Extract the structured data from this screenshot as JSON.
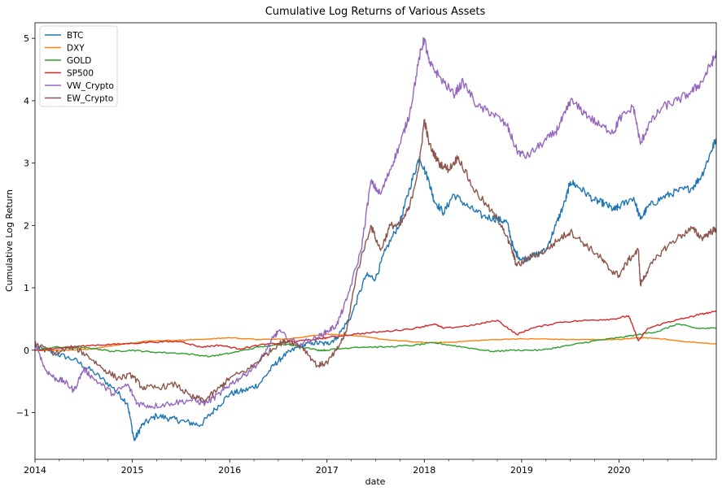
{
  "chart_data": {
    "type": "line",
    "title": "Cumulative Log Returns of Various Assets",
    "xlabel": "date",
    "ylabel": "Cumulative Log Return",
    "xlim": [
      2014.0,
      2021.0
    ],
    "ylim": [
      -1.75,
      5.25
    ],
    "x_ticks": [
      {
        "value": 2014,
        "label": "2014"
      },
      {
        "value": 2015,
        "label": "2015"
      },
      {
        "value": 2016,
        "label": "2016"
      },
      {
        "value": 2017,
        "label": "2017"
      },
      {
        "value": 2018,
        "label": "2018"
      },
      {
        "value": 2019,
        "label": "2019"
      },
      {
        "value": 2020,
        "label": "2020"
      }
    ],
    "x_minor_ticks": [
      2014.25,
      2014.5,
      2014.75,
      2015.25,
      2015.5,
      2015.75,
      2016.25,
      2016.5,
      2016.75,
      2017.25,
      2017.5,
      2017.75,
      2018.25,
      2018.5,
      2018.75,
      2019.25,
      2019.5,
      2019.75,
      2020.25,
      2020.5,
      2020.75
    ],
    "y_ticks": [
      {
        "value": -1,
        "label": "−1"
      },
      {
        "value": 0,
        "label": "0"
      },
      {
        "value": 1,
        "label": "1"
      },
      {
        "value": 2,
        "label": "2"
      },
      {
        "value": 3,
        "label": "3"
      },
      {
        "value": 4,
        "label": "4"
      },
      {
        "value": 5,
        "label": "5"
      }
    ],
    "grid": false,
    "legend_position": "top-left",
    "series": [
      {
        "name": "BTC",
        "color": "#1f77b4",
        "points": [
          [
            2014.0,
            0.05
          ],
          [
            2014.2,
            -0.05
          ],
          [
            2014.4,
            -0.15
          ],
          [
            2014.6,
            -0.35
          ],
          [
            2014.8,
            -0.6
          ],
          [
            2014.95,
            -0.85
          ],
          [
            2015.02,
            -1.45
          ],
          [
            2015.1,
            -1.2
          ],
          [
            2015.25,
            -1.05
          ],
          [
            2015.4,
            -1.1
          ],
          [
            2015.55,
            -1.15
          ],
          [
            2015.7,
            -1.2
          ],
          [
            2015.85,
            -0.95
          ],
          [
            2016.0,
            -0.7
          ],
          [
            2016.15,
            -0.65
          ],
          [
            2016.3,
            -0.55
          ],
          [
            2016.45,
            -0.25
          ],
          [
            2016.55,
            -0.1
          ],
          [
            2016.7,
            0.05
          ],
          [
            2016.85,
            0.12
          ],
          [
            2017.0,
            0.1
          ],
          [
            2017.1,
            0.2
          ],
          [
            2017.25,
            0.55
          ],
          [
            2017.4,
            1.2
          ],
          [
            2017.5,
            1.15
          ],
          [
            2017.6,
            1.6
          ],
          [
            2017.75,
            2.05
          ],
          [
            2017.85,
            2.6
          ],
          [
            2017.95,
            3.1
          ],
          [
            2018.05,
            2.7
          ],
          [
            2018.1,
            2.4
          ],
          [
            2018.2,
            2.2
          ],
          [
            2018.3,
            2.5
          ],
          [
            2018.45,
            2.3
          ],
          [
            2018.6,
            2.15
          ],
          [
            2018.75,
            2.1
          ],
          [
            2018.85,
            2.05
          ],
          [
            2018.92,
            1.6
          ],
          [
            2019.0,
            1.45
          ],
          [
            2019.1,
            1.5
          ],
          [
            2019.25,
            1.6
          ],
          [
            2019.35,
            2.0
          ],
          [
            2019.45,
            2.4
          ],
          [
            2019.5,
            2.7
          ],
          [
            2019.6,
            2.6
          ],
          [
            2019.75,
            2.4
          ],
          [
            2019.85,
            2.35
          ],
          [
            2019.95,
            2.25
          ],
          [
            2020.0,
            2.3
          ],
          [
            2020.15,
            2.45
          ],
          [
            2020.22,
            2.1
          ],
          [
            2020.3,
            2.3
          ],
          [
            2020.45,
            2.45
          ],
          [
            2020.6,
            2.55
          ],
          [
            2020.75,
            2.6
          ],
          [
            2020.85,
            2.8
          ],
          [
            2020.95,
            3.2
          ],
          [
            2021.0,
            3.4
          ]
        ]
      },
      {
        "name": "DXY",
        "color": "#ff7f0e",
        "points": [
          [
            2014.0,
            0.0
          ],
          [
            2014.3,
            0.0
          ],
          [
            2014.6,
            0.02
          ],
          [
            2014.9,
            0.1
          ],
          [
            2015.2,
            0.15
          ],
          [
            2015.5,
            0.16
          ],
          [
            2015.8,
            0.18
          ],
          [
            2016.0,
            0.2
          ],
          [
            2016.3,
            0.17
          ],
          [
            2016.6,
            0.18
          ],
          [
            2016.9,
            0.24
          ],
          [
            2017.0,
            0.26
          ],
          [
            2017.3,
            0.23
          ],
          [
            2017.6,
            0.17
          ],
          [
            2017.9,
            0.13
          ],
          [
            2018.1,
            0.12
          ],
          [
            2018.3,
            0.13
          ],
          [
            2018.6,
            0.16
          ],
          [
            2018.9,
            0.18
          ],
          [
            2019.2,
            0.18
          ],
          [
            2019.5,
            0.17
          ],
          [
            2019.8,
            0.17
          ],
          [
            2020.0,
            0.17
          ],
          [
            2020.2,
            0.2
          ],
          [
            2020.4,
            0.19
          ],
          [
            2020.6,
            0.15
          ],
          [
            2020.8,
            0.12
          ],
          [
            2021.0,
            0.1
          ]
        ]
      },
      {
        "name": "GOLD",
        "color": "#2ca02c",
        "points": [
          [
            2014.0,
            0.0
          ],
          [
            2014.2,
            0.05
          ],
          [
            2014.4,
            0.04
          ],
          [
            2014.6,
            0.03
          ],
          [
            2014.8,
            -0.02
          ],
          [
            2015.0,
            0.0
          ],
          [
            2015.2,
            -0.03
          ],
          [
            2015.5,
            -0.05
          ],
          [
            2015.8,
            -0.1
          ],
          [
            2016.0,
            -0.05
          ],
          [
            2016.3,
            0.05
          ],
          [
            2016.6,
            0.1
          ],
          [
            2016.9,
            0.0
          ],
          [
            2017.0,
            0.0
          ],
          [
            2017.3,
            0.05
          ],
          [
            2017.6,
            0.05
          ],
          [
            2017.9,
            0.08
          ],
          [
            2018.1,
            0.12
          ],
          [
            2018.4,
            0.05
          ],
          [
            2018.7,
            -0.02
          ],
          [
            2018.9,
            0.0
          ],
          [
            2019.2,
            0.0
          ],
          [
            2019.5,
            0.08
          ],
          [
            2019.75,
            0.15
          ],
          [
            2020.0,
            0.2
          ],
          [
            2020.2,
            0.25
          ],
          [
            2020.4,
            0.3
          ],
          [
            2020.6,
            0.42
          ],
          [
            2020.8,
            0.35
          ],
          [
            2021.0,
            0.35
          ]
        ]
      },
      {
        "name": "SP500",
        "color": "#d62728",
        "points": [
          [
            2014.0,
            0.0
          ],
          [
            2014.3,
            0.04
          ],
          [
            2014.6,
            0.08
          ],
          [
            2014.9,
            0.1
          ],
          [
            2015.2,
            0.13
          ],
          [
            2015.5,
            0.14
          ],
          [
            2015.7,
            0.05
          ],
          [
            2015.9,
            0.08
          ],
          [
            2016.1,
            0.02
          ],
          [
            2016.3,
            0.08
          ],
          [
            2016.6,
            0.13
          ],
          [
            2016.9,
            0.18
          ],
          [
            2017.0,
            0.2
          ],
          [
            2017.3,
            0.26
          ],
          [
            2017.6,
            0.3
          ],
          [
            2017.9,
            0.35
          ],
          [
            2018.1,
            0.42
          ],
          [
            2018.2,
            0.35
          ],
          [
            2018.5,
            0.4
          ],
          [
            2018.75,
            0.48
          ],
          [
            2018.95,
            0.25
          ],
          [
            2019.1,
            0.35
          ],
          [
            2019.4,
            0.45
          ],
          [
            2019.7,
            0.48
          ],
          [
            2019.95,
            0.5
          ],
          [
            2020.1,
            0.55
          ],
          [
            2020.2,
            0.15
          ],
          [
            2020.3,
            0.35
          ],
          [
            2020.5,
            0.45
          ],
          [
            2020.7,
            0.52
          ],
          [
            2020.85,
            0.58
          ],
          [
            2021.0,
            0.62
          ]
        ]
      },
      {
        "name": "VW_Crypto",
        "color": "#9467bd",
        "points": [
          [
            2014.0,
            0.15
          ],
          [
            2014.1,
            -0.3
          ],
          [
            2014.2,
            -0.45
          ],
          [
            2014.3,
            -0.5
          ],
          [
            2014.4,
            -0.65
          ],
          [
            2014.5,
            -0.3
          ],
          [
            2014.6,
            -0.45
          ],
          [
            2014.8,
            -0.7
          ],
          [
            2014.95,
            -0.55
          ],
          [
            2015.05,
            -0.85
          ],
          [
            2015.2,
            -0.9
          ],
          [
            2015.4,
            -0.85
          ],
          [
            2015.6,
            -0.8
          ],
          [
            2015.75,
            -0.85
          ],
          [
            2015.9,
            -0.7
          ],
          [
            2016.0,
            -0.55
          ],
          [
            2016.15,
            -0.4
          ],
          [
            2016.3,
            -0.2
          ],
          [
            2016.45,
            0.2
          ],
          [
            2016.5,
            0.3
          ],
          [
            2016.7,
            0.1
          ],
          [
            2016.9,
            0.2
          ],
          [
            2017.0,
            0.3
          ],
          [
            2017.1,
            0.4
          ],
          [
            2017.2,
            0.8
          ],
          [
            2017.35,
            1.6
          ],
          [
            2017.45,
            2.7
          ],
          [
            2017.55,
            2.5
          ],
          [
            2017.65,
            2.9
          ],
          [
            2017.75,
            3.3
          ],
          [
            2017.85,
            3.8
          ],
          [
            2017.95,
            4.7
          ],
          [
            2018.0,
            5.0
          ],
          [
            2018.05,
            4.6
          ],
          [
            2018.15,
            4.4
          ],
          [
            2018.3,
            4.1
          ],
          [
            2018.4,
            4.3
          ],
          [
            2018.55,
            3.9
          ],
          [
            2018.7,
            3.8
          ],
          [
            2018.85,
            3.6
          ],
          [
            2018.95,
            3.2
          ],
          [
            2019.05,
            3.1
          ],
          [
            2019.2,
            3.3
          ],
          [
            2019.35,
            3.5
          ],
          [
            2019.45,
            3.8
          ],
          [
            2019.5,
            4.0
          ],
          [
            2019.65,
            3.8
          ],
          [
            2019.8,
            3.6
          ],
          [
            2019.95,
            3.5
          ],
          [
            2020.0,
            3.7
          ],
          [
            2020.15,
            3.9
          ],
          [
            2020.22,
            3.3
          ],
          [
            2020.3,
            3.6
          ],
          [
            2020.45,
            3.9
          ],
          [
            2020.6,
            4.0
          ],
          [
            2020.75,
            4.15
          ],
          [
            2020.85,
            4.3
          ],
          [
            2020.95,
            4.6
          ],
          [
            2021.0,
            4.75
          ]
        ]
      },
      {
        "name": "EW_Crypto",
        "color": "#8c564b",
        "points": [
          [
            2014.0,
            0.1
          ],
          [
            2014.2,
            -0.05
          ],
          [
            2014.4,
            0.05
          ],
          [
            2014.55,
            -0.1
          ],
          [
            2014.7,
            -0.3
          ],
          [
            2014.85,
            -0.45
          ],
          [
            2015.0,
            -0.4
          ],
          [
            2015.1,
            -0.6
          ],
          [
            2015.25,
            -0.6
          ],
          [
            2015.45,
            -0.55
          ],
          [
            2015.6,
            -0.75
          ],
          [
            2015.75,
            -0.8
          ],
          [
            2015.9,
            -0.6
          ],
          [
            2016.0,
            -0.45
          ],
          [
            2016.2,
            -0.3
          ],
          [
            2016.35,
            -0.1
          ],
          [
            2016.5,
            0.1
          ],
          [
            2016.6,
            0.15
          ],
          [
            2016.75,
            0.05
          ],
          [
            2016.9,
            -0.25
          ],
          [
            2017.0,
            -0.2
          ],
          [
            2017.1,
            0.0
          ],
          [
            2017.2,
            0.3
          ],
          [
            2017.3,
            1.2
          ],
          [
            2017.45,
            2.0
          ],
          [
            2017.55,
            1.6
          ],
          [
            2017.65,
            2.0
          ],
          [
            2017.75,
            2.0
          ],
          [
            2017.85,
            2.3
          ],
          [
            2017.95,
            3.0
          ],
          [
            2018.0,
            3.7
          ],
          [
            2018.05,
            3.3
          ],
          [
            2018.15,
            3.0
          ],
          [
            2018.25,
            2.9
          ],
          [
            2018.35,
            3.1
          ],
          [
            2018.5,
            2.6
          ],
          [
            2018.65,
            2.3
          ],
          [
            2018.8,
            2.0
          ],
          [
            2018.9,
            1.6
          ],
          [
            2018.95,
            1.35
          ],
          [
            2019.1,
            1.5
          ],
          [
            2019.25,
            1.6
          ],
          [
            2019.4,
            1.8
          ],
          [
            2019.5,
            1.9
          ],
          [
            2019.65,
            1.7
          ],
          [
            2019.8,
            1.5
          ],
          [
            2019.9,
            1.3
          ],
          [
            2020.0,
            1.2
          ],
          [
            2020.1,
            1.45
          ],
          [
            2020.2,
            1.6
          ],
          [
            2020.22,
            1.05
          ],
          [
            2020.3,
            1.3
          ],
          [
            2020.45,
            1.6
          ],
          [
            2020.6,
            1.8
          ],
          [
            2020.75,
            1.95
          ],
          [
            2020.85,
            1.8
          ],
          [
            2020.95,
            1.9
          ],
          [
            2021.0,
            1.95
          ]
        ]
      }
    ]
  }
}
